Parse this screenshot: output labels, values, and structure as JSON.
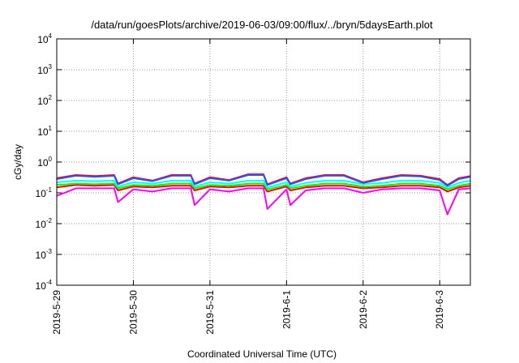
{
  "chart_data": {
    "type": "line",
    "title": "/data/run/goesPlots/archive/2019-06-03/09:00/flux/../bryn/5daysEarth.plot",
    "xlabel": "Coordinated Universal Time (UTC)",
    "ylabel": "cGy/day",
    "yscale": "log",
    "ylim": [
      0.0001,
      10000
    ],
    "y_ticks": [
      {
        "base": "10",
        "exp": "-4"
      },
      {
        "base": "10",
        "exp": "-3"
      },
      {
        "base": "10",
        "exp": "-2"
      },
      {
        "base": "10",
        "exp": "-1"
      },
      {
        "base": "10",
        "exp": "0"
      },
      {
        "base": "10",
        "exp": "1"
      },
      {
        "base": "10",
        "exp": "2"
      },
      {
        "base": "10",
        "exp": "3"
      },
      {
        "base": "10",
        "exp": "4"
      }
    ],
    "x_ticks": [
      "2019-5-29",
      "2019-5-30",
      "2019-5-31",
      "2019-6-1",
      "2019-6-2",
      "2019-6-3"
    ],
    "x_range_days": [
      0,
      5.4
    ],
    "grid": true,
    "grid_style": "dotted",
    "legend": "none",
    "series": [
      {
        "color": "#ff00ff",
        "x": [
          0,
          0.25,
          0.5,
          0.75,
          0.8,
          1.0,
          1.25,
          1.5,
          1.75,
          1.8,
          2.0,
          2.25,
          2.5,
          2.7,
          2.75,
          3.0,
          3.05,
          3.25,
          3.5,
          3.75,
          4.0,
          4.25,
          4.5,
          4.75,
          5.0,
          5.1,
          5.25,
          5.4
        ],
        "y": [
          0.08,
          0.14,
          0.14,
          0.14,
          0.05,
          0.13,
          0.11,
          0.14,
          0.14,
          0.04,
          0.13,
          0.11,
          0.14,
          0.14,
          0.03,
          0.13,
          0.04,
          0.12,
          0.14,
          0.14,
          0.1,
          0.13,
          0.14,
          0.14,
          0.12,
          0.02,
          0.13,
          0.14
        ]
      },
      {
        "color": "#ff0000",
        "x": [
          0,
          0.25,
          0.5,
          0.75,
          0.8,
          1.0,
          1.25,
          1.5,
          1.75,
          1.8,
          2.0,
          2.25,
          2.5,
          2.7,
          2.75,
          3.0,
          3.05,
          3.25,
          3.5,
          3.75,
          4.0,
          4.25,
          4.5,
          4.75,
          5.0,
          5.1,
          5.25,
          5.4
        ],
        "y": [
          0.15,
          0.18,
          0.17,
          0.18,
          0.12,
          0.16,
          0.15,
          0.17,
          0.17,
          0.12,
          0.16,
          0.15,
          0.17,
          0.17,
          0.11,
          0.16,
          0.12,
          0.15,
          0.17,
          0.17,
          0.14,
          0.15,
          0.17,
          0.17,
          0.15,
          0.11,
          0.15,
          0.17
        ]
      },
      {
        "color": "#00ff00",
        "x": [
          0,
          0.25,
          0.5,
          0.75,
          0.8,
          1.0,
          1.25,
          1.5,
          1.75,
          1.8,
          2.0,
          2.25,
          2.5,
          2.7,
          2.75,
          3.0,
          3.05,
          3.25,
          3.5,
          3.75,
          4.0,
          4.25,
          4.5,
          4.75,
          5.0,
          5.1,
          5.25,
          5.4
        ],
        "y": [
          0.18,
          0.2,
          0.19,
          0.2,
          0.14,
          0.18,
          0.17,
          0.2,
          0.2,
          0.14,
          0.18,
          0.17,
          0.2,
          0.2,
          0.13,
          0.18,
          0.14,
          0.17,
          0.2,
          0.2,
          0.16,
          0.17,
          0.2,
          0.2,
          0.17,
          0.13,
          0.17,
          0.2
        ]
      },
      {
        "color": "#00ffff",
        "x": [
          0,
          0.25,
          0.5,
          0.75,
          0.8,
          1.0,
          1.25,
          1.5,
          1.75,
          1.8,
          2.0,
          2.25,
          2.5,
          2.7,
          2.75,
          3.0,
          3.05,
          3.25,
          3.5,
          3.75,
          4.0,
          4.25,
          4.5,
          4.75,
          5.0,
          5.1,
          5.25,
          5.4
        ],
        "y": [
          0.22,
          0.25,
          0.24,
          0.25,
          0.16,
          0.22,
          0.2,
          0.25,
          0.25,
          0.16,
          0.22,
          0.2,
          0.25,
          0.25,
          0.15,
          0.22,
          0.16,
          0.21,
          0.25,
          0.25,
          0.19,
          0.21,
          0.25,
          0.25,
          0.21,
          0.15,
          0.21,
          0.25
        ]
      },
      {
        "color": "#ff0000",
        "x": [
          0,
          0.25,
          0.5,
          0.75,
          0.8,
          1.0,
          1.25,
          1.5,
          1.75,
          1.8,
          2.0,
          2.25,
          2.5,
          2.7,
          2.75,
          3.0,
          3.05,
          3.25,
          3.5,
          3.75,
          4.0,
          4.25,
          4.5,
          4.75,
          5.0,
          5.1,
          5.25,
          5.4
        ],
        "y": [
          0.3,
          0.38,
          0.35,
          0.38,
          0.2,
          0.32,
          0.25,
          0.38,
          0.38,
          0.2,
          0.32,
          0.26,
          0.4,
          0.4,
          0.19,
          0.32,
          0.2,
          0.3,
          0.38,
          0.38,
          0.22,
          0.3,
          0.38,
          0.36,
          0.28,
          0.18,
          0.3,
          0.35
        ]
      },
      {
        "color": "#3050ff",
        "x": [
          0,
          0.25,
          0.5,
          0.75,
          0.8,
          1.0,
          1.25,
          1.5,
          1.75,
          1.8,
          2.0,
          2.25,
          2.5,
          2.7,
          2.75,
          3.0,
          3.05,
          3.25,
          3.5,
          3.75,
          4.0,
          4.25,
          4.5,
          4.75,
          5.0,
          5.1,
          5.25,
          5.4
        ],
        "y": [
          0.28,
          0.36,
          0.33,
          0.36,
          0.19,
          0.3,
          0.24,
          0.36,
          0.36,
          0.19,
          0.3,
          0.25,
          0.38,
          0.38,
          0.18,
          0.3,
          0.19,
          0.28,
          0.36,
          0.36,
          0.21,
          0.28,
          0.36,
          0.34,
          0.26,
          0.17,
          0.28,
          0.33
        ]
      }
    ]
  }
}
